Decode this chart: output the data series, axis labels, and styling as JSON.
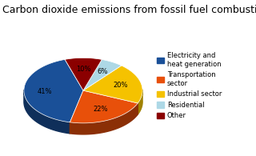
{
  "title": "Carbon dioxide emissions from fossil fuel combustion",
  "labels": [
    "Electricity and\nheat generation",
    "Transportation\nsector",
    "Industrial sector",
    "Residential",
    "Other"
  ],
  "values": [
    41,
    22,
    20,
    6,
    10
  ],
  "colors": [
    "#1a5098",
    "#e8500a",
    "#f5c200",
    "#add8e6",
    "#8b0000"
  ],
  "colors_dark": [
    "#0f2f5a",
    "#8b2f06",
    "#a08200",
    "#6a9ab0",
    "#4a0000"
  ],
  "legend_labels": [
    "Electricity and\nheat generation",
    "Transportation\nsector",
    "Industrial sector",
    "Residential",
    "Other"
  ],
  "startangle": 108,
  "title_fontsize": 9,
  "background_color": "#ffffff",
  "pct_labels": [
    "41%",
    "22%",
    "20%",
    "6%",
    "10%"
  ]
}
